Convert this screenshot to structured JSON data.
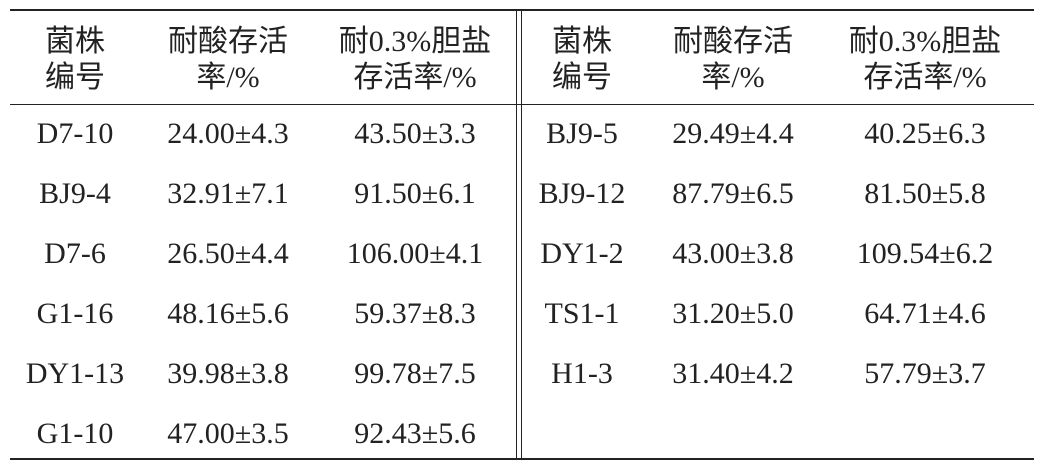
{
  "left": {
    "header": [
      [
        "菌株",
        "编号"
      ],
      [
        "耐酸存活",
        "率/%"
      ],
      [
        "耐0.3%胆盐",
        "存活率/%"
      ]
    ],
    "rows": [
      [
        "D7-10",
        "24.00±4.3",
        "43.50±3.3"
      ],
      [
        "BJ9-4",
        "32.91±7.1",
        "91.50±6.1"
      ],
      [
        "D7-6",
        "26.50±4.4",
        "106.00±4.1"
      ],
      [
        "G1-16",
        "48.16±5.6",
        "59.37±8.3"
      ],
      [
        "DY1-13",
        "39.98±3.8",
        "99.78±7.5"
      ],
      [
        "G1-10",
        "47.00±3.5",
        "92.43±5.6"
      ]
    ]
  },
  "right": {
    "header": [
      [
        "菌株",
        "编号"
      ],
      [
        "耐酸存活",
        "率/%"
      ],
      [
        "耐0.3%胆盐",
        "存活率/%"
      ]
    ],
    "rows": [
      [
        "BJ9-5",
        "29.49±4.4",
        "40.25±6.3"
      ],
      [
        "BJ9-12",
        "87.79±6.5",
        "81.50±5.8"
      ],
      [
        "DY1-2",
        "43.00±3.8",
        "109.54±6.2"
      ],
      [
        "TS1-1",
        "31.20±5.0",
        "64.71±4.6"
      ],
      [
        "H1-3",
        "31.40±4.2",
        "57.79±3.7"
      ]
    ]
  }
}
